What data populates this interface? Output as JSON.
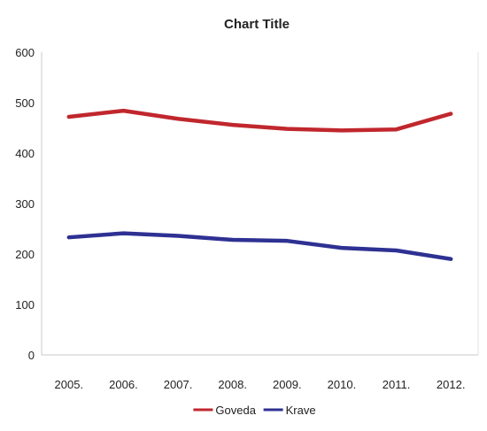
{
  "chart_data": {
    "type": "line",
    "title": "Chart Title",
    "categories": [
      "2005.",
      "2006.",
      "2007.",
      "2008.",
      "2009.",
      "2010.",
      "2011.",
      "2012."
    ],
    "series": [
      {
        "name": "Goveda",
        "color": "#c0272d",
        "values": [
          472,
          484,
          468,
          456,
          448,
          445,
          447,
          478
        ]
      },
      {
        "name": "Krave",
        "color": "#2e3192",
        "values": [
          233,
          241,
          236,
          228,
          226,
          212,
          207,
          190
        ]
      }
    ],
    "ylim": [
      0,
      600
    ],
    "yticks": [
      "0",
      "100",
      "200",
      "300",
      "400",
      "500",
      "600"
    ],
    "xlabel": "",
    "ylabel": "",
    "grid": false,
    "legend_position": "bottom"
  }
}
